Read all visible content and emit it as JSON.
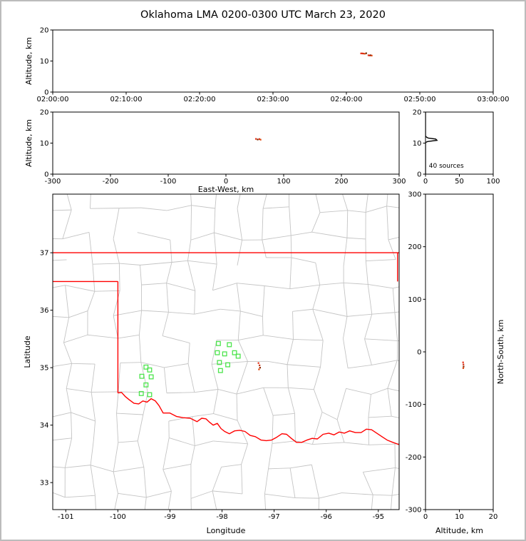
{
  "figure": {
    "title": "Oklahoma LMA 0200-0300 UTC March 23, 2020"
  },
  "colors": {
    "axis": "#000000",
    "county_line": "#c4c4c4",
    "state_border": "#ff0000",
    "station_marker": "#4ce44c",
    "histogram_line": "#000000",
    "background": "#ffffff",
    "frame_border": "#bcbcbc"
  },
  "chart_data": [
    {
      "id": "time-height",
      "type": "scatter",
      "xlabel": "",
      "ylabel": "Altitude, km",
      "xlim": [
        0,
        60
      ],
      "ylim": [
        0,
        20
      ],
      "xticks": [
        0,
        10,
        20,
        30,
        40,
        50,
        60
      ],
      "xtick_labels": [
        "02:00:00",
        "02:10:00",
        "02:20:00",
        "02:30:00",
        "02:40:00",
        "02:50:00",
        "03:00:00"
      ],
      "yticks": [
        0,
        10,
        20
      ],
      "points": [
        {
          "x": 42.0,
          "y": 12.45,
          "c": "#e63219"
        },
        {
          "x": 42.15,
          "y": 12.45,
          "c": "#e63219"
        },
        {
          "x": 42.3,
          "y": 12.4,
          "c": "#d42a10"
        },
        {
          "x": 42.5,
          "y": 12.35,
          "c": "#e04a10"
        },
        {
          "x": 42.7,
          "y": 12.5,
          "c": "#6b2a00"
        },
        {
          "x": 43.0,
          "y": 11.85,
          "c": "#e63219"
        },
        {
          "x": 43.15,
          "y": 11.8,
          "c": "#cc2810"
        },
        {
          "x": 43.3,
          "y": 11.85,
          "c": "#8b1a00"
        },
        {
          "x": 43.45,
          "y": 11.75,
          "c": "#e04a10"
        }
      ]
    },
    {
      "id": "ew-height",
      "type": "scatter",
      "xlabel": "East-West, km",
      "ylabel": "Altitude, km",
      "xlim": [
        -300,
        300
      ],
      "ylim": [
        0,
        20
      ],
      "xticks": [
        -300,
        -200,
        -100,
        0,
        100,
        200,
        300
      ],
      "yticks": [
        0,
        10,
        20
      ],
      "points": [
        {
          "x": 52,
          "y": 11.35,
          "c": "#e63219"
        },
        {
          "x": 55,
          "y": 11.15,
          "c": "#7a2a00"
        },
        {
          "x": 58,
          "y": 11.3,
          "c": "#d42a10"
        },
        {
          "x": 60,
          "y": 11.1,
          "c": "#e04a10"
        }
      ]
    },
    {
      "id": "alt-histogram",
      "type": "line",
      "xlabel": "",
      "ylabel": "",
      "xlim": [
        0,
        100
      ],
      "ylim": [
        0,
        20
      ],
      "xticks": [
        0,
        50,
        100
      ],
      "yticks": [
        0,
        10,
        20
      ],
      "profile": [
        [
          0,
          20
        ],
        [
          0,
          12.3
        ],
        [
          1,
          12.0
        ],
        [
          4,
          11.6
        ],
        [
          15,
          11.3
        ],
        [
          17,
          10.9
        ],
        [
          3,
          10.5
        ],
        [
          0,
          10.2
        ],
        [
          0,
          0
        ]
      ],
      "annotation": {
        "text": "40 sources",
        "x": 5,
        "y": 2.1
      }
    },
    {
      "id": "map",
      "type": "map-scatter",
      "xlabel": "Longitude",
      "ylabel": "Latitude",
      "xlim": [
        -101.25,
        -94.6
      ],
      "ylim": [
        32.53,
        38.02
      ],
      "xticks": [
        -101,
        -100,
        -99,
        -98,
        -97,
        -96,
        -95
      ],
      "yticks": [
        33,
        34,
        35,
        36,
        37
      ],
      "state_lines": [
        [
          [
            -101.25,
            37
          ],
          [
            -94.6,
            37
          ]
        ],
        [
          [
            -101.25,
            36.5
          ],
          [
            -100,
            36.5
          ]
        ],
        [
          [
            -100,
            36.5
          ],
          [
            -100,
            34.56
          ]
        ],
        [
          [
            -94.63,
            37
          ],
          [
            -94.63,
            36.5
          ]
        ],
        [
          [
            -100.0,
            34.56
          ],
          [
            -99.93,
            34.57
          ],
          [
            -99.86,
            34.5
          ],
          [
            -99.78,
            34.44
          ],
          [
            -99.69,
            34.38
          ],
          [
            -99.6,
            34.37
          ],
          [
            -99.52,
            34.42
          ],
          [
            -99.44,
            34.4
          ],
          [
            -99.36,
            34.46
          ],
          [
            -99.28,
            34.42
          ],
          [
            -99.21,
            34.34
          ],
          [
            -99.13,
            34.21
          ],
          [
            -99.0,
            34.21
          ],
          [
            -98.87,
            34.15
          ],
          [
            -98.75,
            34.13
          ],
          [
            -98.61,
            34.12
          ],
          [
            -98.48,
            34.06
          ],
          [
            -98.39,
            34.12
          ],
          [
            -98.31,
            34.11
          ],
          [
            -98.24,
            34.05
          ],
          [
            -98.17,
            34.0
          ],
          [
            -98.09,
            34.03
          ],
          [
            -98.02,
            33.94
          ],
          [
            -97.95,
            33.89
          ],
          [
            -97.86,
            33.85
          ],
          [
            -97.76,
            33.9
          ],
          [
            -97.66,
            33.91
          ],
          [
            -97.56,
            33.89
          ],
          [
            -97.46,
            33.82
          ],
          [
            -97.36,
            33.8
          ],
          [
            -97.25,
            33.74
          ],
          [
            -97.15,
            33.73
          ],
          [
            -97.05,
            33.74
          ],
          [
            -96.95,
            33.79
          ],
          [
            -96.85,
            33.85
          ],
          [
            -96.76,
            33.84
          ],
          [
            -96.67,
            33.77
          ],
          [
            -96.57,
            33.7
          ],
          [
            -96.47,
            33.7
          ],
          [
            -96.37,
            33.74
          ],
          [
            -96.27,
            33.77
          ],
          [
            -96.17,
            33.76
          ],
          [
            -96.06,
            33.84
          ],
          [
            -95.95,
            33.86
          ],
          [
            -95.85,
            33.83
          ],
          [
            -95.75,
            33.88
          ],
          [
            -95.65,
            33.86
          ],
          [
            -95.55,
            33.9
          ],
          [
            -95.44,
            33.87
          ],
          [
            -95.33,
            33.87
          ],
          [
            -95.23,
            33.93
          ],
          [
            -95.13,
            33.92
          ],
          [
            -95.03,
            33.86
          ],
          [
            -94.93,
            33.8
          ],
          [
            -94.83,
            33.74
          ],
          [
            -94.72,
            33.7
          ],
          [
            -94.6,
            33.66
          ]
        ]
      ],
      "stations": [
        [
          -99.46,
          35.01
        ],
        [
          -99.39,
          34.96
        ],
        [
          -99.54,
          34.85
        ],
        [
          -99.36,
          34.84
        ],
        [
          -99.46,
          34.7
        ],
        [
          -99.55,
          34.55
        ],
        [
          -99.39,
          34.53
        ],
        [
          -98.07,
          35.42
        ],
        [
          -97.86,
          35.4
        ],
        [
          -98.09,
          35.26
        ],
        [
          -97.95,
          35.24
        ],
        [
          -97.76,
          35.26
        ],
        [
          -97.69,
          35.2
        ],
        [
          -98.05,
          35.09
        ],
        [
          -97.89,
          35.05
        ],
        [
          -98.03,
          34.95
        ]
      ],
      "points": [
        {
          "x": -97.3,
          "y": 35.08,
          "c": "#e63219"
        },
        {
          "x": -97.28,
          "y": 35.04,
          "c": "#c83210"
        },
        {
          "x": -97.27,
          "y": 35.0,
          "c": "#8b2500"
        },
        {
          "x": -97.29,
          "y": 34.97,
          "c": "#e04a10"
        }
      ]
    },
    {
      "id": "ns-height",
      "type": "scatter",
      "xlabel": "Altitude, km",
      "ylabel": "North-South, km",
      "ylabel_side": "right",
      "xlim": [
        0,
        20
      ],
      "ylim": [
        -300,
        300
      ],
      "xticks": [
        0,
        10,
        20
      ],
      "yticks": [
        -300,
        -200,
        -100,
        0,
        100,
        200,
        300
      ],
      "points": [
        {
          "x": 11.1,
          "y": -20,
          "c": "#e63219"
        },
        {
          "x": 11.2,
          "y": -24,
          "c": "#d42a10"
        },
        {
          "x": 11.25,
          "y": -28,
          "c": "#8b2500"
        },
        {
          "x": 11.15,
          "y": -31,
          "c": "#e04a10"
        }
      ]
    }
  ]
}
